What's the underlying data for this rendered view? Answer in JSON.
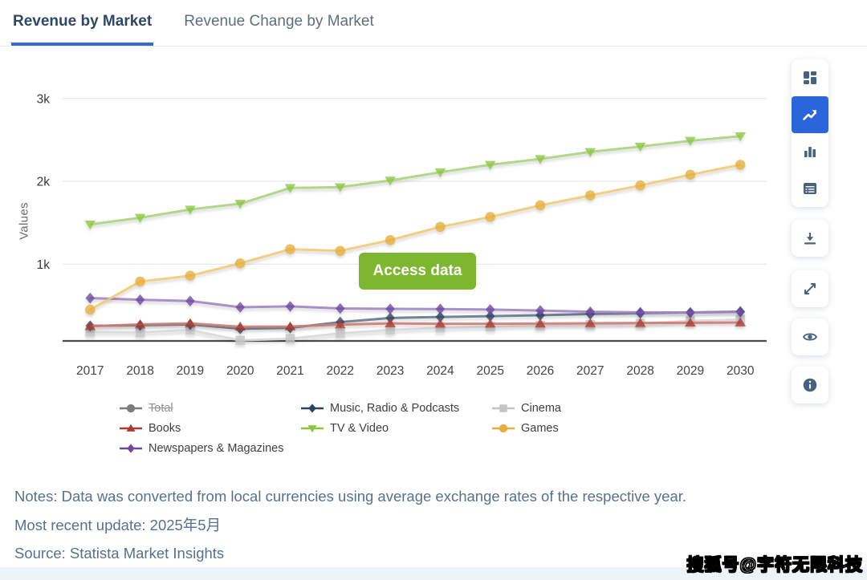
{
  "tabs": [
    {
      "label": "Revenue by Market",
      "active": true
    },
    {
      "label": "Revenue Change by Market",
      "active": false
    }
  ],
  "chart": {
    "access_button_label": "Access data"
  },
  "chart_data": {
    "type": "line",
    "x": [
      2017,
      2018,
      2019,
      2020,
      2021,
      2022,
      2023,
      2024,
      2025,
      2026,
      2027,
      2028,
      2029,
      2030
    ],
    "ylabel": "Values",
    "ylim": [
      0,
      3200
    ],
    "grid": true,
    "legend_position": "bottom",
    "yticks": [
      {
        "label": "1k",
        "value": 1000
      },
      {
        "label": "2k",
        "value": 2000
      },
      {
        "label": "3k",
        "value": 3000
      }
    ],
    "series": [
      {
        "name": "Total",
        "marker": "circle",
        "color": "#7d7d7d",
        "line_color": "#9a9a9a",
        "hidden": true,
        "z": 0,
        "values": []
      },
      {
        "name": "Books",
        "marker": "triangle-up",
        "color": "#a83c32",
        "line_color": "#cf7a70",
        "z": 3,
        "values": [
          250,
          272,
          285,
          245,
          247,
          270,
          285,
          280,
          280,
          282,
          286,
          289,
          292,
          295
        ]
      },
      {
        "name": "Newspapers & Magazines",
        "marker": "diamond",
        "color": "#6a48a0",
        "line_color": "#a184c4",
        "z": 4,
        "values": [
          590,
          570,
          555,
          480,
          490,
          465,
          460,
          458,
          452,
          440,
          425,
          418,
          415,
          422
        ]
      },
      {
        "name": "Music, Radio & Podcasts",
        "marker": "diamond",
        "color": "#2c4363",
        "line_color": "#64788e",
        "z": 2,
        "values": [
          255,
          262,
          272,
          220,
          230,
          300,
          350,
          362,
          372,
          383,
          398,
          408,
          416,
          428
        ]
      },
      {
        "name": "TV & Video",
        "marker": "triangle-down",
        "color": "#8cc63f",
        "line_color": "#a9d47c",
        "z": 6,
        "values": [
          1480,
          1560,
          1660,
          1730,
          1920,
          1930,
          2010,
          2110,
          2200,
          2270,
          2355,
          2420,
          2490,
          2545
        ]
      },
      {
        "name": "Cinema",
        "marker": "square",
        "color": "#c4c4c4",
        "line_color": "#d9d9d9",
        "z": 1,
        "values": [
          180,
          175,
          205,
          80,
          100,
          165,
          205,
          230,
          245,
          258,
          270,
          282,
          315,
          330
        ]
      },
      {
        "name": "Games",
        "marker": "circle",
        "color": "#e5ae3d",
        "line_color": "#f0ca75",
        "z": 5,
        "values": [
          450,
          790,
          860,
          1010,
          1180,
          1160,
          1290,
          1450,
          1570,
          1710,
          1830,
          1950,
          2080,
          2200
        ]
      }
    ]
  },
  "legend": {
    "columns": [
      [
        "Total",
        "Books",
        "Newspapers & Magazines"
      ],
      [
        "Music, Radio & Podcasts",
        "TV & Video"
      ],
      [
        "Cinema",
        "Games"
      ]
    ]
  },
  "toolbar": {
    "view_buttons": [
      {
        "name": "grid-view-button",
        "icon": "grid-icon",
        "active": false
      },
      {
        "name": "line-chart-button",
        "icon": "line-chart-icon",
        "active": true
      },
      {
        "name": "bar-chart-button",
        "icon": "bar-chart-icon",
        "active": false
      },
      {
        "name": "table-view-button",
        "icon": "table-icon",
        "active": false
      }
    ],
    "action_buttons": [
      {
        "name": "download-button",
        "icon": "download-icon"
      },
      {
        "name": "fullscreen-button",
        "icon": "expand-icon"
      },
      {
        "name": "preview-button",
        "icon": "eye-icon"
      },
      {
        "name": "info-button",
        "icon": "info-icon"
      }
    ]
  },
  "notes": {
    "line1": "Notes: Data was converted from local currencies using average exchange rates of the respective year.",
    "line2": "Most recent update: 2025年5月",
    "line3": "Source: Statista Market Insights"
  },
  "watermark": "搜狐号@字符无限科技",
  "colors": {
    "accent_blue": "#2a65dc",
    "button_green": "#7db72f",
    "tab_underline": "#3568d8",
    "icon_slate": "#47627f",
    "notes_text": "#57718f",
    "axis_line": "#4c4c4c",
    "gridline": "#e3e3e3",
    "tick_text": "#454545"
  }
}
